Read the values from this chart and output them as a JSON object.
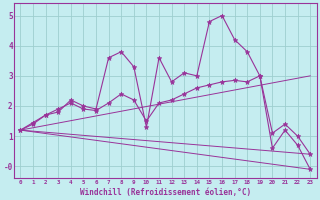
{
  "xlabel": "Windchill (Refroidissement éolien,°C)",
  "xlim": [
    -0.5,
    23.5
  ],
  "ylim": [
    -0.4,
    5.4
  ],
  "xticks": [
    0,
    1,
    2,
    3,
    4,
    5,
    6,
    7,
    8,
    9,
    10,
    11,
    12,
    13,
    14,
    15,
    16,
    17,
    18,
    19,
    20,
    21,
    22,
    23
  ],
  "yticks": [
    0,
    1,
    2,
    3,
    4,
    5
  ],
  "ytick_labels": [
    "-0",
    "1",
    "2",
    "3",
    "4",
    "5"
  ],
  "bg_color": "#c5edf0",
  "line_color": "#993399",
  "grid_color": "#9ecfcf",
  "series1_x": [
    0,
    1,
    2,
    3,
    4,
    5,
    6,
    7,
    8,
    9,
    10,
    11,
    12,
    13,
    14,
    15,
    16,
    17,
    18,
    19,
    20,
    21,
    22,
    23
  ],
  "series1_y": [
    1.2,
    1.4,
    1.7,
    1.8,
    2.2,
    2.0,
    1.9,
    3.6,
    3.8,
    3.3,
    1.3,
    3.6,
    2.8,
    3.1,
    3.0,
    4.8,
    5.0,
    4.2,
    3.8,
    3.0,
    0.6,
    1.2,
    0.7,
    -0.1
  ],
  "series2_x": [
    0,
    1,
    2,
    3,
    4,
    5,
    6,
    7,
    8,
    9,
    10,
    11,
    12,
    13,
    14,
    15,
    16,
    17,
    18,
    19,
    20,
    21,
    22,
    23
  ],
  "series2_y": [
    1.2,
    1.45,
    1.7,
    1.9,
    2.1,
    1.9,
    1.85,
    2.1,
    2.4,
    2.2,
    1.5,
    2.1,
    2.2,
    2.4,
    2.6,
    2.7,
    2.8,
    2.85,
    2.8,
    3.0,
    1.1,
    1.4,
    1.0,
    0.4
  ],
  "series3_x": [
    0,
    23
  ],
  "series3_y": [
    1.2,
    3.0
  ],
  "series4_x": [
    0,
    23
  ],
  "series4_y": [
    1.2,
    -0.1
  ],
  "series5_x": [
    0,
    23
  ],
  "series5_y": [
    1.2,
    0.4
  ]
}
